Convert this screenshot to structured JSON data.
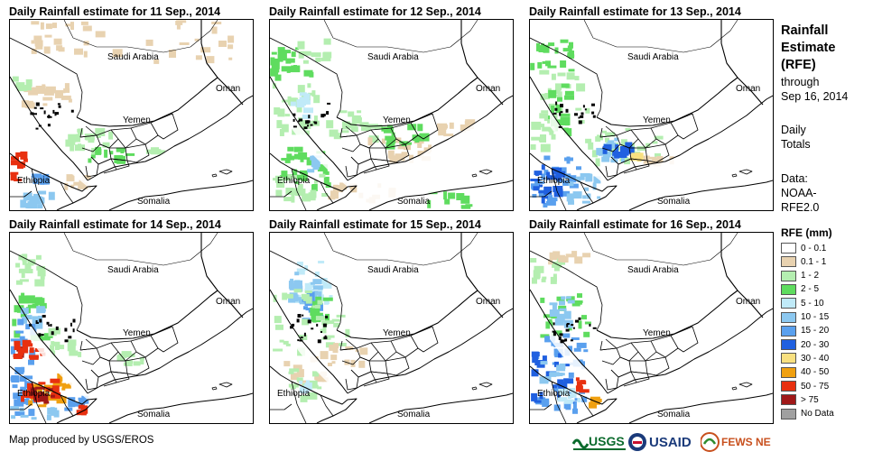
{
  "panels": [
    {
      "title": "Daily Rainfall estimate for 11 Sep., 2014"
    },
    {
      "title": "Daily Rainfall estimate for 12 Sep., 2014"
    },
    {
      "title": "Daily Rainfall estimate for 13 Sep., 2014"
    },
    {
      "title": "Daily Rainfall estimate for 14 Sep., 2014"
    },
    {
      "title": "Daily Rainfall estimate for 15 Sep., 2014"
    },
    {
      "title": "Daily Rainfall estimate for 16 Sep., 2014"
    }
  ],
  "map_labels": {
    "saudi": "Saudi Arabia",
    "oman": "Oman",
    "yemen": "Yemen",
    "ethiopia": "Ethiopia",
    "somalia": "Somalia"
  },
  "legend": {
    "title_lines": [
      "Rainfall",
      "Estimate",
      "(RFE)"
    ],
    "through": "through",
    "date": "Sep 16, 2014",
    "daily": "Daily",
    "totals": "Totals",
    "data_label": "Data:",
    "source1": "NOAA-",
    "source2": "RFE2.0",
    "rfe_head": "RFE (mm)",
    "classes": [
      {
        "label": "0 - 0.1",
        "color": "#ffffff"
      },
      {
        "label": "0.1 - 1",
        "color": "#e8d2b0"
      },
      {
        "label": "1 - 2",
        "color": "#b4eeb0"
      },
      {
        "label": "2 - 5",
        "color": "#5fdc5f"
      },
      {
        "label": "5 - 10",
        "color": "#c0eaf8"
      },
      {
        "label": "10 - 15",
        "color": "#8cc8f0"
      },
      {
        "label": "15 - 20",
        "color": "#5aa0ee"
      },
      {
        "label": "20 - 30",
        "color": "#2060e0"
      },
      {
        "label": "30 - 40",
        "color": "#f8e080"
      },
      {
        "label": "40 - 50",
        "color": "#f0a010"
      },
      {
        "label": "50 - 75",
        "color": "#e83010"
      },
      {
        "label": "> 75",
        "color": "#a01818"
      },
      {
        "label": "No Data",
        "color": "#a0a0a0"
      }
    ]
  },
  "credit": "Map produced by USGS/EROS",
  "logos": {
    "usgs": "USGS",
    "usaid": "USAID",
    "fewsnet": "FEWS NET"
  }
}
